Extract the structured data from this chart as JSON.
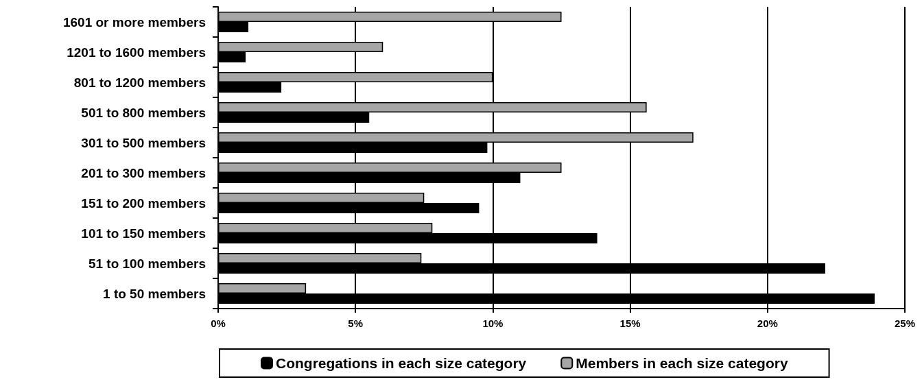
{
  "chart_data": {
    "type": "bar",
    "orientation": "horizontal",
    "categories": [
      "1601 or more members",
      "1201 to 1600 members",
      "801 to 1200 members",
      "501 to 800 members",
      "301 to 500 members",
      "201 to 300 members",
      "151 to 200 members",
      "101 to 150 members",
      "51 to 100 members",
      "1 to 50 members"
    ],
    "series": [
      {
        "name": "Congregations in each size category",
        "color": "#000000",
        "values": [
          1.1,
          1.0,
          2.3,
          5.5,
          9.8,
          11.0,
          9.5,
          13.8,
          22.1,
          23.9
        ]
      },
      {
        "name": "Members in each size category",
        "color": "#a6a6a6",
        "values": [
          12.5,
          6.0,
          10.0,
          15.6,
          17.3,
          12.5,
          7.5,
          7.8,
          7.4,
          3.2
        ]
      }
    ],
    "xlim": [
      0,
      25
    ],
    "xticks": [
      {
        "value": 0,
        "label": "0%"
      },
      {
        "value": 5,
        "label": "5%"
      },
      {
        "value": 10,
        "label": "10%"
      },
      {
        "value": 15,
        "label": "15%"
      },
      {
        "value": 20,
        "label": "20%"
      },
      {
        "value": 25,
        "label": "25%"
      }
    ],
    "grid": "x",
    "legend": "bottom"
  }
}
